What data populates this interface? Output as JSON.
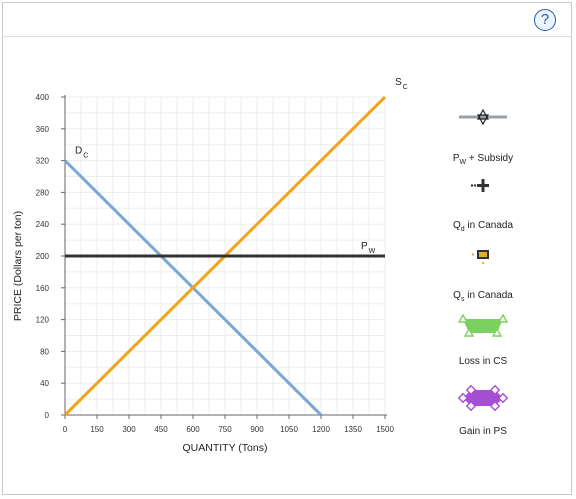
{
  "help_icon": "?",
  "chart_data": {
    "type": "line",
    "xlabel": "QUANTITY (Tons)",
    "ylabel": "PRICE (Dollars per ton)",
    "xlim": [
      0,
      1500
    ],
    "ylim": [
      0,
      400
    ],
    "x_ticks": [
      0,
      150,
      300,
      450,
      600,
      750,
      900,
      1050,
      1200,
      1350,
      1500
    ],
    "y_ticks": [
      0,
      40,
      80,
      120,
      160,
      200,
      240,
      280,
      320,
      360,
      400
    ],
    "grid": true,
    "series": [
      {
        "name": "D",
        "subscript": "C",
        "color": "#7ba7d4",
        "x": [
          0,
          1200
        ],
        "y": [
          320,
          0
        ]
      },
      {
        "name": "S",
        "subscript": "C",
        "color": "#f5a21b",
        "x": [
          0,
          1500
        ],
        "y": [
          0,
          400
        ]
      },
      {
        "name": "P",
        "subscript": "W",
        "color": "#333333",
        "x": [
          0,
          1500
        ],
        "y": [
          200,
          200
        ]
      }
    ]
  },
  "legend": [
    {
      "main": "P",
      "sub": "W",
      "rest": " + Subsidy",
      "icon": "star-line-icon",
      "color": "#9aa0a6"
    },
    {
      "main": "Q",
      "sub": "d",
      "rest": " in Canada",
      "icon": "plus-marker-icon",
      "color": "#333333"
    },
    {
      "main": "Q",
      "sub": "s",
      "rest": " in Canada",
      "icon": "square-marker-icon",
      "color": "#e0b030"
    },
    {
      "main": "Loss in CS",
      "sub": "",
      "rest": "",
      "icon": "green-area-icon",
      "color": "#7bd15e"
    },
    {
      "main": "Gain in PS",
      "sub": "",
      "rest": "",
      "icon": "purple-area-icon",
      "color": "#a64fd4"
    }
  ]
}
